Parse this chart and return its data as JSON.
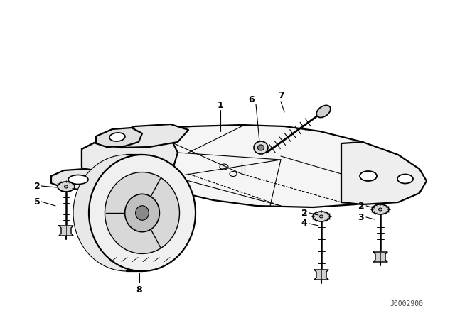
{
  "bg_color": "#ffffff",
  "line_color": "#000000",
  "diagram_id": "J0002900",
  "lw_main": 1.6,
  "lw_thin": 0.8,
  "label_fontsize": 9
}
